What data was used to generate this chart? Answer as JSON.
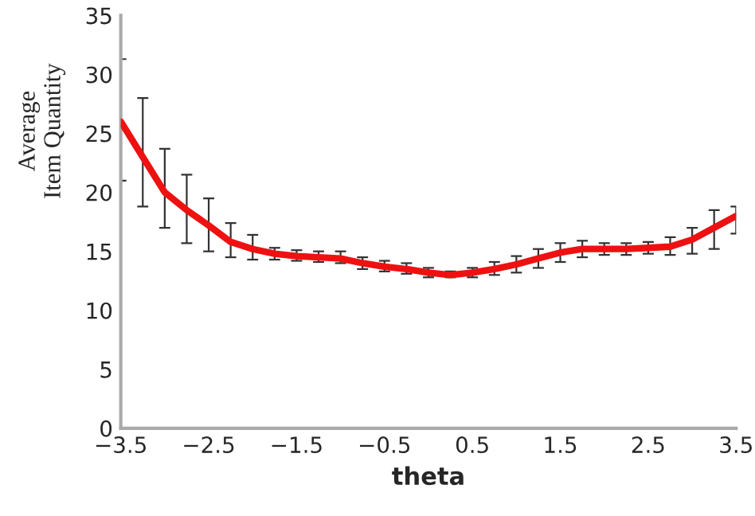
{
  "chart_data": {
    "type": "line",
    "xlabel": "theta",
    "ylabel": "Average\nItem Quantity",
    "x": [
      -3.5,
      -3.25,
      -3.0,
      -2.75,
      -2.5,
      -2.25,
      -2.0,
      -1.75,
      -1.5,
      -1.25,
      -1.0,
      -0.75,
      -0.5,
      -0.25,
      0,
      0.25,
      0.5,
      0.75,
      1.0,
      1.25,
      1.5,
      1.75,
      2.0,
      2.25,
      2.5,
      2.75,
      3.0,
      3.25,
      3.5
    ],
    "series": [
      {
        "color": "#ee1111",
        "values": [
          26,
          23,
          20,
          18.5,
          17.2,
          15.8,
          15.2,
          14.8,
          14.6,
          14.5,
          14.4,
          14.0,
          13.7,
          13.5,
          13.2,
          13.0,
          13.2,
          13.5,
          13.9,
          14.4,
          14.9,
          15.2,
          15.2,
          15.2,
          15.3,
          15.4,
          16,
          17,
          18
        ],
        "errors": [
          [
            21,
            31.3
          ],
          [
            18.8,
            28
          ],
          [
            17,
            23.7
          ],
          [
            15.7,
            21.5
          ],
          [
            15,
            19.5
          ],
          [
            14.5,
            17.4
          ],
          [
            14.3,
            16.4
          ],
          [
            14.3,
            15.3
          ],
          [
            14.2,
            15.1
          ],
          [
            14.1,
            15
          ],
          [
            14,
            15
          ],
          [
            13.5,
            14.5
          ],
          [
            13.3,
            14.2
          ],
          [
            13.1,
            14
          ],
          [
            12.8,
            13.6
          ],
          [
            12.8,
            13.3
          ],
          [
            12.8,
            13.6
          ],
          [
            13,
            14.1
          ],
          [
            13.2,
            14.6
          ],
          [
            13.6,
            15.2
          ],
          [
            14.1,
            15.7
          ],
          [
            14.5,
            15.9
          ],
          [
            14.7,
            15.7
          ],
          [
            14.7,
            15.7
          ],
          [
            14.8,
            15.8
          ],
          [
            14.7,
            16.2
          ],
          [
            14.8,
            17
          ],
          [
            15.2,
            18.5
          ],
          [
            16.5,
            18.8
          ]
        ]
      }
    ],
    "xlim": [
      -3.5,
      3.5
    ],
    "ylim": [
      0,
      35
    ],
    "xticks": [
      {
        "value": -3.5,
        "label": "−3.5"
      },
      {
        "value": -2.5,
        "label": "−2.5"
      },
      {
        "value": -1.5,
        "label": "−1.5"
      },
      {
        "value": -0.5,
        "label": "−0.5"
      },
      0.5,
      1.5,
      2.5,
      3.5
    ],
    "yticks": [
      0,
      5,
      10,
      15,
      20,
      25,
      30,
      35
    ],
    "grid": false,
    "marker": "none",
    "line_style": "solid"
  }
}
